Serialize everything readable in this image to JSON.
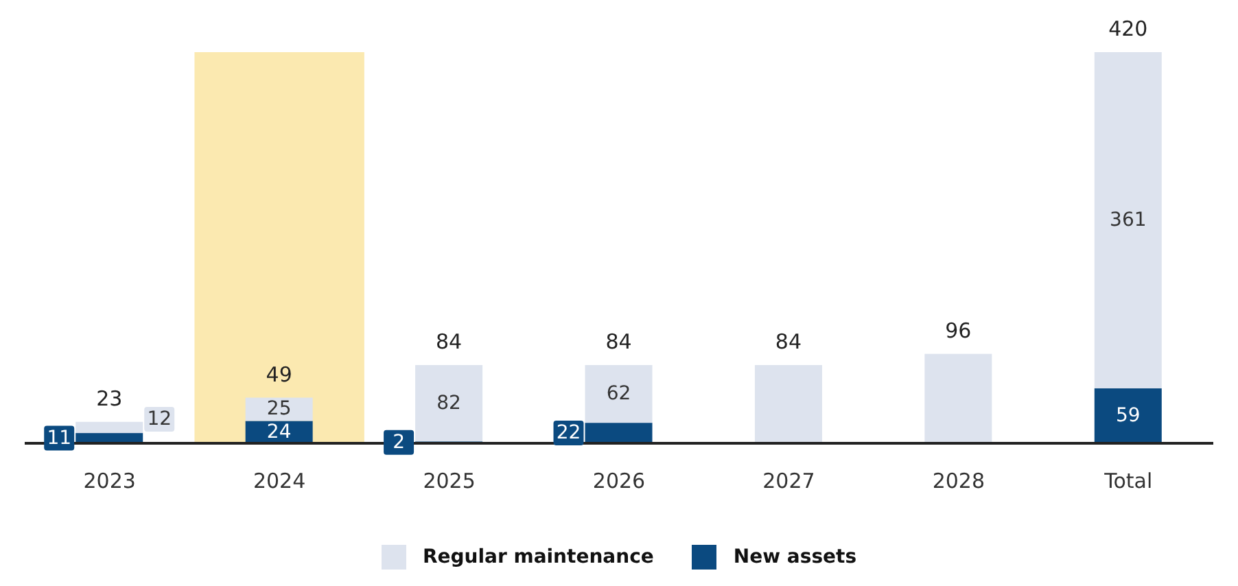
{
  "chart_data": {
    "type": "bar",
    "stacked": true,
    "categories": [
      "2023",
      "2024",
      "2025",
      "2026",
      "2027",
      "2028",
      "Total"
    ],
    "series": [
      {
        "name": "New assets",
        "color": "#0b4a80",
        "values": [
          11,
          24,
          2,
          22,
          null,
          null,
          59
        ],
        "value_labels": [
          "11",
          "24",
          "2",
          "22",
          null,
          null,
          "59"
        ]
      },
      {
        "name": "Regular maintenance",
        "color": "#dde3ee",
        "values": [
          12,
          25,
          82,
          62,
          84,
          96,
          361
        ],
        "value_labels": [
          "12",
          "25",
          "82",
          "62",
          null,
          null,
          "361"
        ]
      }
    ],
    "totals": [
      "23",
      "49",
      "84",
      "84",
      "84",
      "96",
      "420"
    ],
    "bands": [
      {
        "axis": "x",
        "from": "2024",
        "to": "2024",
        "color": "#fbe9b0"
      }
    ],
    "legend": "bottom"
  }
}
